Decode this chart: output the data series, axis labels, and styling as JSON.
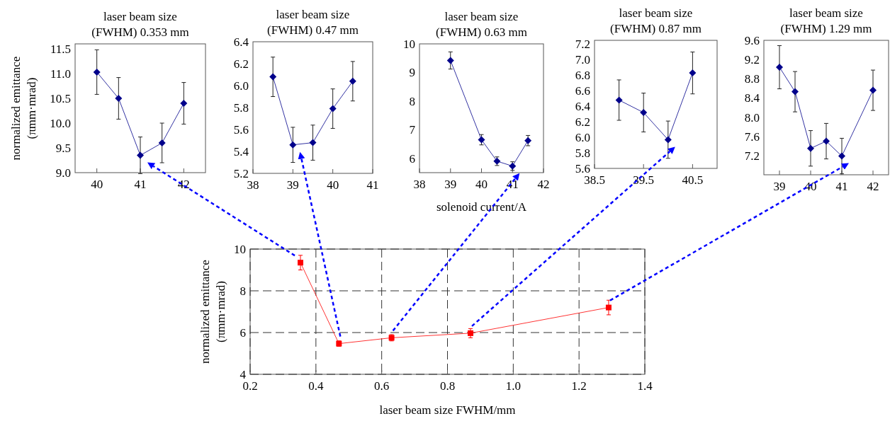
{
  "chart_data": [
    {
      "type": "line",
      "title": "laser beam size\n(FWHM) 0.353 mm",
      "ylabel": "normalized emittance\n(πmm·mrad)",
      "marker": "diamond",
      "x": [
        40,
        40.5,
        41,
        41.5,
        42
      ],
      "xlim": [
        39.5,
        42.5
      ],
      "xticks": [
        40,
        41,
        42
      ],
      "ylim": [
        9.0,
        11.6
      ],
      "yticks": [
        {
          "value": 9,
          "label": "9.0"
        },
        9.5,
        {
          "value": 10,
          "label": "10.0"
        },
        10.5,
        {
          "value": 11,
          "label": "11.0"
        },
        11.5
      ],
      "series": [
        {
          "color": "#00008b",
          "values": [
            11.03,
            10.5,
            9.35,
            9.6,
            10.4
          ],
          "errors": [
            0.45,
            0.42,
            0.37,
            0.4,
            0.42
          ]
        }
      ]
    },
    {
      "type": "line",
      "title": "laser beam size\n(FWHM) 0.47 mm",
      "marker": "diamond",
      "x": [
        38.5,
        39,
        39.5,
        40,
        40.5
      ],
      "xlim": [
        38,
        41
      ],
      "xticks": [
        38,
        39,
        40,
        41
      ],
      "ylim": [
        5.2,
        6.4
      ],
      "yticks": [
        5.2,
        5.4,
        5.6,
        5.8,
        {
          "value": 6,
          "label": "6.0"
        },
        6.2,
        6.4
      ],
      "series": [
        {
          "color": "#00008b",
          "values": [
            6.08,
            5.46,
            5.48,
            5.79,
            6.04
          ],
          "errors": [
            0.18,
            0.16,
            0.16,
            0.18,
            0.18
          ]
        }
      ]
    },
    {
      "type": "line",
      "title": "laser beam size\n(FWHM) 0.63 mm",
      "xlabel": "solenoid current/A",
      "marker": "diamond",
      "x": [
        39,
        40,
        40.5,
        41,
        41.5
      ],
      "xlim": [
        38,
        42
      ],
      "xticks": [
        38,
        39,
        40,
        41,
        42
      ],
      "ylim": [
        5.5,
        10
      ],
      "yticks": [
        6,
        7,
        8,
        9,
        10
      ],
      "series": [
        {
          "color": "#00008b",
          "values": [
            9.42,
            6.65,
            5.9,
            5.73,
            6.62
          ],
          "errors": [
            0.3,
            0.18,
            0.15,
            0.15,
            0.18
          ]
        }
      ]
    },
    {
      "type": "line",
      "title": "laser beam size\n(FWHM) 0.87 mm",
      "marker": "diamond",
      "x": [
        39,
        39.5,
        40,
        40.5
      ],
      "xlim": [
        38.5,
        41
      ],
      "xticks": [
        38.5,
        39.5,
        40.5
      ],
      "ylim": [
        5.6,
        7.25
      ],
      "yticks": [
        5.6,
        5.8,
        {
          "value": 6,
          "label": "6.0"
        },
        6.2,
        6.4,
        6.6,
        6.8,
        {
          "value": 7,
          "label": "7.0"
        },
        7.2
      ],
      "series": [
        {
          "color": "#00008b",
          "values": [
            6.48,
            6.32,
            5.97,
            6.83
          ],
          "errors": [
            0.26,
            0.25,
            0.24,
            0.27
          ]
        }
      ]
    },
    {
      "type": "line",
      "title": "laser beam size\n(FWHM) 1.29 mm",
      "marker": "diamond",
      "x": [
        39,
        39.5,
        40,
        40.5,
        41,
        42
      ],
      "xlim": [
        38.5,
        42.5
      ],
      "xticks": [
        39,
        40,
        41,
        42
      ],
      "ylim": [
        6.8,
        9.6
      ],
      "yticks": [
        7.2,
        7.6,
        {
          "value": 8,
          "label": "8.0"
        },
        8.4,
        8.8,
        9.2,
        9.6
      ],
      "series": [
        {
          "color": "#00008b",
          "values": [
            9.04,
            8.53,
            7.35,
            7.5,
            7.19,
            8.56
          ],
          "errors": [
            0.45,
            0.42,
            0.37,
            0.37,
            0.37,
            0.42
          ]
        }
      ]
    },
    {
      "type": "line",
      "xlabel": "laser beam size FWHM/mm",
      "ylabel": "normalized emittance\n(πmm·mrad)",
      "marker": "square",
      "grid": true,
      "x": [
        0.353,
        0.47,
        0.63,
        0.87,
        1.29
      ],
      "xlim": [
        0.2,
        1.4
      ],
      "xticks": [
        0.2,
        0.4,
        0.6,
        0.8,
        {
          "value": 1,
          "label": "1.0"
        },
        1.2,
        1.4
      ],
      "ylim": [
        4,
        10
      ],
      "yticks": [
        4,
        6,
        8,
        10
      ],
      "series": [
        {
          "color": "#ff0000",
          "values": [
            9.35,
            5.47,
            5.75,
            5.97,
            7.2
          ],
          "errors": [
            0.35,
            0.13,
            0.15,
            0.22,
            0.35
          ]
        }
      ]
    }
  ]
}
